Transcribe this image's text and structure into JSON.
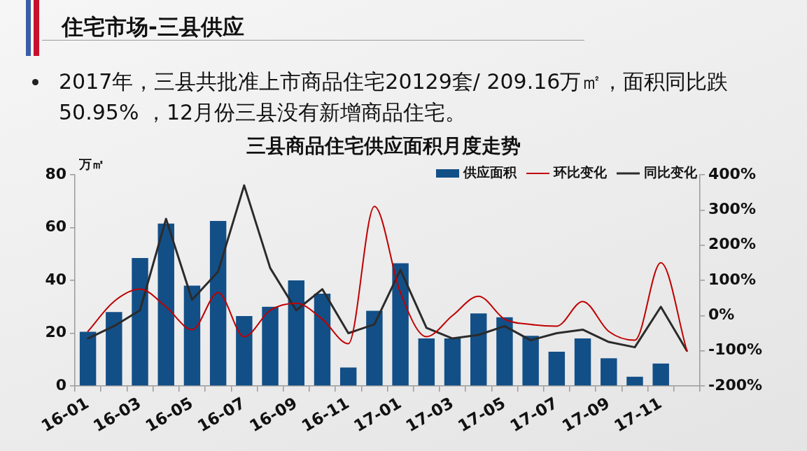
{
  "chart_data": {
    "type": "bar",
    "title": "三县商品住宅供应面积月度走势",
    "annotations": [
      "住宅市场-三县供应",
      "2017年，三县共批准上市商品住宅20129套/ 209.16万㎡，面积同比跌50.95% ，12月份三县没有新增商品住宅。"
    ],
    "ylabel": "万㎡",
    "categories": [
      "16-01",
      null,
      "16-03",
      null,
      "16-05",
      null,
      "16-07",
      null,
      "16-09",
      null,
      "16-11",
      null,
      "17-01",
      null,
      "17-03",
      null,
      "17-05",
      null,
      "17-07",
      null,
      "17-09",
      null,
      "17-11",
      null
    ],
    "series": [
      {
        "name": "供应面积",
        "color": "#134f87",
        "values": [
          20.5,
          28,
          48.5,
          61.5,
          38,
          62.5,
          26.5,
          30,
          40,
          35,
          7,
          28.5,
          46.5,
          18,
          18,
          27.5,
          26,
          19,
          13,
          18,
          10.5,
          3.5,
          8.5,
          0
        ]
      },
      {
        "name": "环比变化",
        "type": "line",
        "axis": "y2",
        "color": "#c00000",
        "values": [
          -45,
          40,
          75,
          25,
          -40,
          65,
          -60,
          15,
          35,
          -10,
          -80,
          310,
          65,
          -60,
          0,
          55,
          -10,
          -25,
          -30,
          40,
          -45,
          -70,
          150,
          -100
        ]
      },
      {
        "name": "同比变化",
        "type": "line",
        "axis": "y2",
        "color": "#2b2b2b",
        "values": [
          -65,
          -30,
          15,
          275,
          45,
          125,
          370,
          135,
          15,
          75,
          -50,
          -25,
          130,
          -35,
          -65,
          -55,
          -30,
          -70,
          -50,
          -40,
          -75,
          -90,
          25,
          -100
        ]
      }
    ],
    "ylim": [
      0,
      80
    ],
    "yticks": [
      0,
      20,
      40,
      60,
      80
    ],
    "y2lim": [
      -200,
      400
    ],
    "y2ticks": [
      {
        "value": -200,
        "label": "-200%"
      },
      {
        "value": -100,
        "label": "-100%"
      },
      {
        "value": 0,
        "label": "0%"
      },
      {
        "value": 100,
        "label": "100%"
      },
      {
        "value": 200,
        "label": "200%"
      },
      {
        "value": 300,
        "label": "300%"
      },
      {
        "value": 400,
        "label": "400%"
      }
    ],
    "legend": "top right",
    "grid": false,
    "marker": "none",
    "line_style": "solid"
  }
}
